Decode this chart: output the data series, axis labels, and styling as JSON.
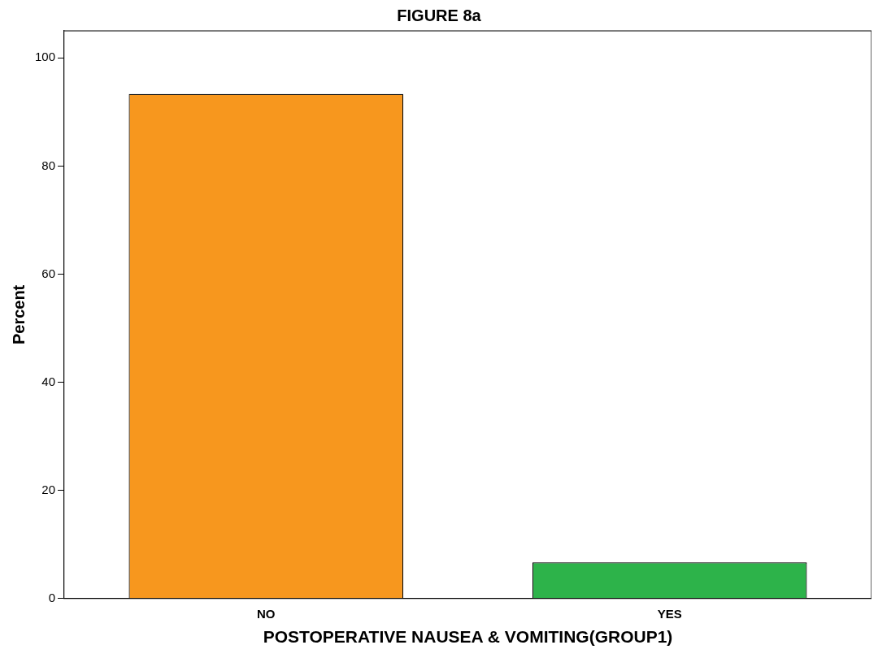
{
  "chart_data": {
    "type": "bar",
    "title": "FIGURE 8a",
    "xlabel": "POSTOPERATIVE NAUSEA & VOMITING(GROUP1)",
    "ylabel": "Percent",
    "categories": [
      "NO",
      "YES"
    ],
    "values": [
      93.3,
      6.7
    ],
    "colors": [
      "#f7971e",
      "#2db34a"
    ],
    "ylim": [
      0,
      105
    ],
    "yticks": [
      0,
      20,
      40,
      60,
      80,
      100
    ],
    "grid": false,
    "legend": false
  }
}
